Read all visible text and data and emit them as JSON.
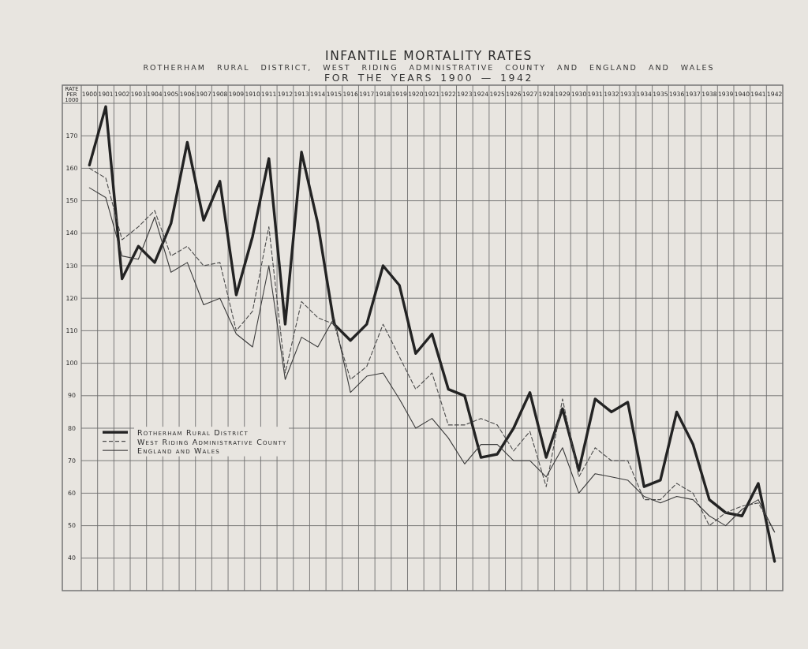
{
  "chart_data": {
    "type": "line",
    "title": "INFANTILE MORTALITY RATES",
    "subtitle": "ROTHERHAM RURAL DISTRICT, WEST RIDING ADMINISTRATIVE COUNTY AND ENGLAND AND WALES\nFOR THE YEARS 1900 — 1942",
    "ylabel": "RATE PER 1000",
    "categories": [
      "1900",
      "1901",
      "1902",
      "1903",
      "1904",
      "1905",
      "1906",
      "1907",
      "1908",
      "1909",
      "1910",
      "1911",
      "1912",
      "1913",
      "1914",
      "1915",
      "1916",
      "1917",
      "1918",
      "1919",
      "1920",
      "1921",
      "1922",
      "1923",
      "1924",
      "1925",
      "1926",
      "1927",
      "1928",
      "1929",
      "1930",
      "1931",
      "1932",
      "1933",
      "1934",
      "1935",
      "1936",
      "1937",
      "1938",
      "1939",
      "1940",
      "1941",
      "1942"
    ],
    "series": [
      {
        "name": "Rotherham Rural District",
        "color": "#232323",
        "line_style": "solid",
        "values": [
          161,
          179,
          126,
          136,
          131,
          143,
          168,
          144,
          156,
          121,
          139,
          163,
          112,
          165,
          143,
          112,
          107,
          112,
          130,
          124,
          103,
          109,
          92,
          90,
          71,
          72,
          80,
          91,
          71,
          86,
          67,
          89,
          85,
          88,
          62,
          64,
          85,
          75,
          58,
          54,
          53,
          63,
          39
        ]
      },
      {
        "name": "West Riding Administrative County",
        "color": "#4a4a4a",
        "line_style": "dashed",
        "values": [
          160,
          157,
          138,
          142,
          147,
          133,
          136,
          130,
          131,
          110,
          116,
          142,
          97,
          119,
          114,
          112,
          95,
          99,
          112,
          102,
          92,
          97,
          81,
          81,
          83,
          81,
          73,
          79,
          62,
          89,
          65,
          74,
          70,
          70,
          58,
          58,
          63,
          60,
          50,
          54,
          56,
          57,
          48
        ]
      },
      {
        "name": "England and Wales",
        "color": "#3a3a3a",
        "line_style": "solid",
        "values": [
          154,
          151,
          133,
          132,
          145,
          128,
          131,
          118,
          120,
          109,
          105,
          130,
          95,
          108,
          105,
          114,
          91,
          96,
          97,
          89,
          80,
          83,
          77,
          69,
          75,
          75,
          70,
          70,
          65,
          74,
          60,
          66,
          65,
          64,
          59,
          57,
          59,
          58,
          53,
          50,
          55,
          58,
          48
        ]
      }
    ],
    "ylim": [
      30,
      180
    ],
    "yticks": [
      40,
      50,
      60,
      70,
      80,
      90,
      100,
      110,
      120,
      130,
      140,
      150,
      160,
      170
    ],
    "grid": true,
    "legend": "bottom left"
  }
}
